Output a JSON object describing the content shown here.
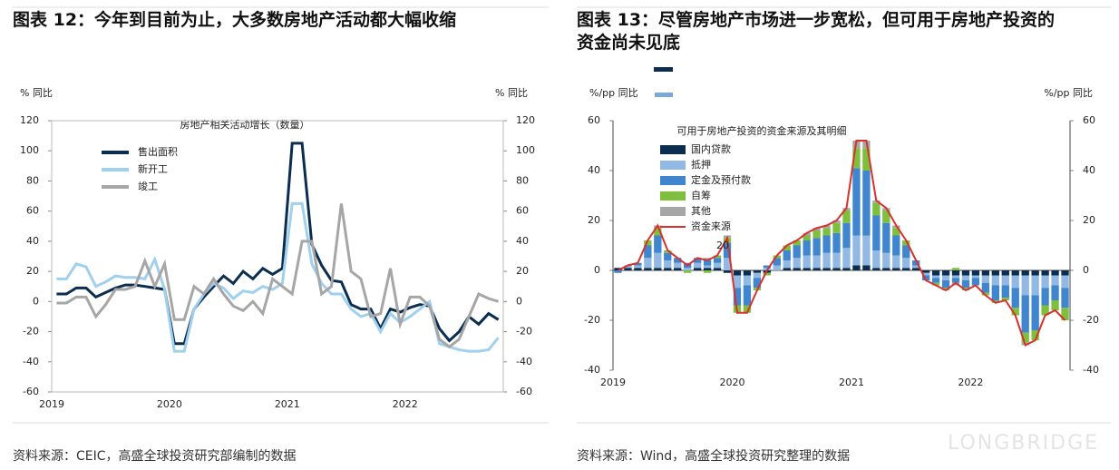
{
  "watermark": "LONGBRIDGE",
  "chart_data": [
    {
      "type": "line",
      "title": "图表 12：今年到目前为止，大多数房地产活动都大幅收缩",
      "subtitle": "房地产相关活动增长（数量）",
      "ylabel": "% 同比",
      "y2label": "% 同比",
      "source": "资料来源：CEIC，高盛全球投资研究部编制的数据",
      "categories": [
        "2019",
        null,
        null,
        null,
        null,
        null,
        null,
        null,
        null,
        null,
        null,
        null,
        "2020",
        null,
        null,
        null,
        null,
        null,
        null,
        null,
        null,
        null,
        null,
        null,
        "2021",
        null,
        null,
        null,
        null,
        null,
        null,
        null,
        null,
        null,
        null,
        null,
        "2022",
        null,
        null,
        null,
        null,
        null,
        null,
        null,
        null,
        null
      ],
      "ylim": [
        -60,
        120
      ],
      "yticks": [
        120,
        100,
        80,
        60,
        40,
        20,
        0,
        -20,
        -40,
        -60
      ],
      "y2lim": [
        -60,
        120
      ],
      "y2ticks": [
        120,
        100,
        80,
        60,
        40,
        20,
        0,
        -20,
        -40,
        -60
      ],
      "series": [
        {
          "name": "售出面积",
          "color": "#0b2d4f",
          "values": [
            5,
            5,
            9,
            9,
            3,
            6,
            9,
            11,
            11,
            10,
            9,
            8,
            -28,
            -28,
            -5,
            3,
            10,
            17,
            12,
            20,
            15,
            22,
            18,
            22,
            105,
            105,
            38,
            24,
            14,
            13,
            -2,
            -5,
            -5,
            -18,
            -5,
            -7,
            -4,
            -2,
            -3,
            -18,
            -26,
            -20,
            -10,
            -15,
            -8,
            -12
          ]
        },
        {
          "name": "新开工",
          "color": "#9fd0ee",
          "values": [
            15,
            15,
            25,
            23,
            10,
            13,
            17,
            16,
            16,
            15,
            28,
            8,
            -33,
            -33,
            -5,
            5,
            12,
            9,
            2,
            7,
            6,
            10,
            8,
            12,
            65,
            65,
            25,
            12,
            5,
            5,
            -5,
            -10,
            -8,
            -20,
            -8,
            -14,
            -10,
            -5,
            0,
            -28,
            -30,
            -32,
            -33,
            -33,
            -32,
            -24
          ]
        },
        {
          "name": "竣工",
          "color": "#a6a6a6",
          "values": [
            -1,
            -1,
            3,
            3,
            -10,
            -2,
            8,
            8,
            10,
            27,
            10,
            25,
            -12,
            -12,
            10,
            5,
            15,
            5,
            -3,
            -6,
            0,
            -8,
            15,
            10,
            5,
            40,
            40,
            5,
            10,
            65,
            20,
            15,
            -10,
            -8,
            22,
            -15,
            3,
            3,
            -3,
            -25,
            -30,
            -25,
            -10,
            5,
            2,
            0
          ]
        }
      ]
    },
    {
      "type": "bar",
      "stacked": true,
      "title": "图表 13：尽管房地产市场进一步宽松，但可用于房地产投资的资金尚未见底",
      "subtitle": "可用于房地产投资的资金来源及其明细",
      "ylabel": "%/pp 同比",
      "y2label": "%/pp 同比",
      "annotation": "20",
      "source": "资料来源：Wind，高盛全球投资研究整理的数据",
      "categories": [
        "2019",
        null,
        null,
        null,
        null,
        null,
        null,
        null,
        null,
        null,
        null,
        null,
        "2020",
        null,
        null,
        null,
        null,
        null,
        null,
        null,
        null,
        null,
        null,
        null,
        "2021",
        null,
        null,
        null,
        null,
        null,
        null,
        null,
        null,
        null,
        null,
        null,
        "2022",
        null,
        null,
        null,
        null,
        null,
        null,
        null,
        null,
        null
      ],
      "ylim": [
        -40,
        60
      ],
      "yticks": [
        60,
        40,
        20,
        0,
        -20,
        -40
      ],
      "y2lim": [
        -40,
        60
      ],
      "y2ticks": [
        60,
        40,
        20,
        0,
        -20,
        -40
      ],
      "series": [
        {
          "name": "国内贷款",
          "color": "#0b2d4f",
          "values": [
            1,
            1,
            1,
            1,
            1,
            1,
            1,
            0,
            1,
            1,
            1,
            -1,
            -2,
            -2,
            -1,
            -1,
            0,
            1,
            1,
            1,
            1,
            1,
            1,
            1,
            2,
            2,
            1,
            1,
            1,
            1,
            1,
            -1,
            -2,
            -2,
            -2,
            -2,
            -2,
            -2,
            -2,
            -2,
            -2,
            -2,
            -2,
            -2,
            -2,
            -2
          ]
        },
        {
          "name": "抵押",
          "color": "#92b9e3",
          "values": [
            0,
            1,
            1,
            4,
            6,
            3,
            2,
            1,
            2,
            1,
            2,
            5,
            -5,
            -4,
            -2,
            1,
            2,
            3,
            4,
            5,
            5,
            6,
            6,
            8,
            12,
            12,
            7,
            6,
            5,
            4,
            1,
            -1,
            -1,
            -2,
            -1,
            -2,
            -1,
            -3,
            -4,
            -4,
            -5,
            -8,
            -8,
            -5,
            -4,
            -5
          ]
        },
        {
          "name": "定金及预付款",
          "color": "#3f86cf",
          "values": [
            -1,
            0,
            1,
            5,
            7,
            3,
            2,
            2,
            2,
            2,
            2,
            6,
            -7,
            -8,
            -4,
            1,
            3,
            4,
            5,
            6,
            7,
            7,
            8,
            10,
            27,
            26,
            14,
            12,
            8,
            5,
            2,
            -2,
            -2,
            -3,
            -2,
            -3,
            -3,
            -4,
            -6,
            -5,
            -8,
            -15,
            -14,
            -7,
            -6,
            -8
          ]
        },
        {
          "name": "自筹",
          "color": "#7ec03e",
          "values": [
            0,
            0,
            0,
            2,
            3,
            1,
            0,
            -1,
            0,
            -1,
            1,
            2,
            -3,
            -3,
            -1,
            -1,
            1,
            2,
            2,
            2,
            3,
            3,
            4,
            5,
            8,
            9,
            5,
            5,
            3,
            2,
            0,
            0,
            -1,
            -1,
            1,
            -1,
            0,
            -1,
            -1,
            -1,
            -3,
            -4,
            -4,
            -4,
            -4,
            -5
          ]
        },
        {
          "name": "其他",
          "color": "#a6a6a6",
          "values": [
            0,
            0,
            0,
            0,
            1,
            0,
            0,
            0,
            0,
            1,
            0,
            1,
            0,
            0,
            0,
            0,
            0,
            0,
            0,
            1,
            1,
            1,
            1,
            1,
            3,
            3,
            1,
            1,
            1,
            0,
            0,
            0,
            0,
            0,
            -1,
            0,
            0,
            0,
            0,
            0,
            0,
            -1,
            0,
            0,
            0,
            0
          ]
        },
        {
          "name": "资金来源",
          "color": "#d9302c",
          "type": "line",
          "values": [
            0,
            2,
            3,
            12,
            18,
            8,
            5,
            2,
            5,
            4,
            6,
            13,
            -17,
            -17,
            -8,
            0,
            6,
            10,
            12,
            15,
            17,
            18,
            20,
            25,
            52,
            52,
            28,
            25,
            18,
            12,
            4,
            -4,
            -6,
            -8,
            -5,
            -8,
            -6,
            -10,
            -13,
            -12,
            -18,
            -30,
            -28,
            -18,
            -16,
            -20
          ]
        }
      ]
    }
  ]
}
